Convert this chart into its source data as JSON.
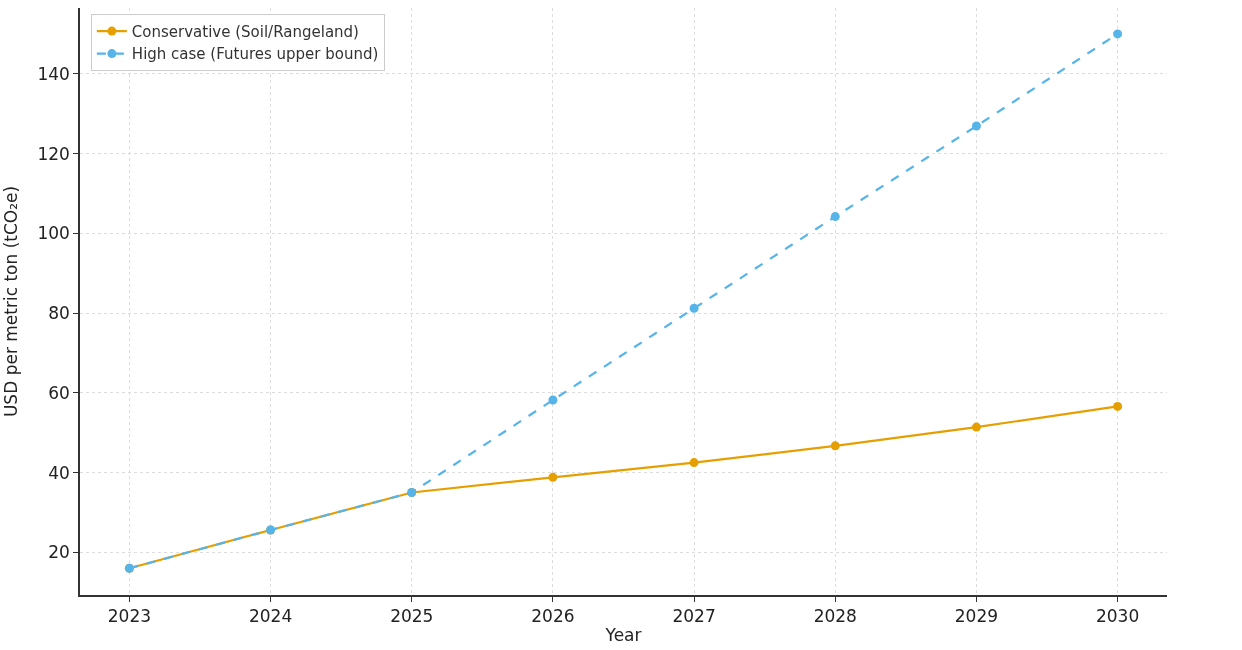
{
  "chart_data": {
    "type": "line",
    "xlabel": "Year",
    "ylabel": "USD per metric ton (tCO₂e)",
    "x": [
      2023,
      2024,
      2025,
      2026,
      2027,
      2028,
      2029,
      2030
    ],
    "series": [
      {
        "name": "Conservative (Soil/Rangeland)",
        "color": "#e69f00",
        "line_style": "solid",
        "values": [
          16,
          25.6,
          35,
          38.8,
          42.5,
          46.7,
          51.4,
          56.6
        ]
      },
      {
        "name": "High case (Futures upper bound)",
        "color": "#56b4e9",
        "line_style": "dashed",
        "values": [
          16,
          25.6,
          35,
          58.2,
          81.2,
          104.2,
          126.9,
          150
        ]
      }
    ],
    "xlim": [
      2022.65,
      2030.35
    ],
    "ylim": [
      9.3,
      156.5
    ],
    "xticks": [
      2023,
      2024,
      2025,
      2026,
      2027,
      2028,
      2029,
      2030
    ],
    "yticks": [
      20,
      40,
      60,
      80,
      100,
      120,
      140
    ],
    "grid": true,
    "legend": "top left",
    "marker": "circle"
  }
}
